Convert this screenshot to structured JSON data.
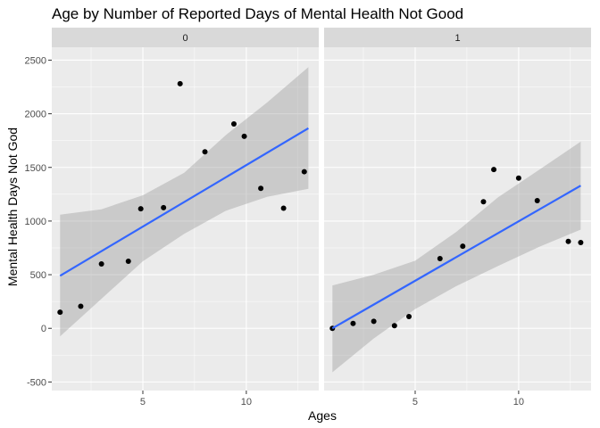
{
  "chart_data": {
    "type": "scatter",
    "title": "Age by Number of Reported Days of Mental Health Not Good",
    "xlabel": "Ages",
    "ylabel": "Mental Health Days Not God",
    "xlim": [
      0.6,
      13.5
    ],
    "ylim": [
      -580,
      2620
    ],
    "x_ticks": [
      5,
      10
    ],
    "y_ticks": [
      -500,
      0,
      500,
      1000,
      1500,
      2000,
      2500
    ],
    "grid": true,
    "legend": "none",
    "colors": {
      "panel_bg": "#ebebeb",
      "grid": "#ffffff",
      "strip_bg": "#d9d9d9",
      "point": "#000000",
      "fit_line": "#3366ff",
      "ribbon": "#999999"
    },
    "facets": [
      {
        "label": "0",
        "points": [
          {
            "x": 1,
            "y": 150
          },
          {
            "x": 2,
            "y": 205
          },
          {
            "x": 3,
            "y": 600
          },
          {
            "x": 4.3,
            "y": 625
          },
          {
            "x": 4.9,
            "y": 1115
          },
          {
            "x": 6,
            "y": 1125
          },
          {
            "x": 6.8,
            "y": 2280
          },
          {
            "x": 8,
            "y": 1645
          },
          {
            "x": 9.4,
            "y": 1905
          },
          {
            "x": 9.9,
            "y": 1790
          },
          {
            "x": 10.7,
            "y": 1305
          },
          {
            "x": 11.8,
            "y": 1120
          },
          {
            "x": 12.8,
            "y": 1460
          }
        ],
        "fit": {
          "x": [
            1,
            13
          ],
          "y": [
            490,
            1865
          ]
        },
        "band": {
          "x": [
            1,
            3,
            5,
            7,
            9,
            11,
            13
          ],
          "lower": [
            -75,
            275,
            625,
            880,
            1095,
            1225,
            1300
          ],
          "upper": [
            1060,
            1110,
            1240,
            1450,
            1800,
            2105,
            2435
          ]
        }
      },
      {
        "label": "1",
        "points": [
          {
            "x": 1,
            "y": 0
          },
          {
            "x": 2,
            "y": 45
          },
          {
            "x": 3,
            "y": 65
          },
          {
            "x": 4,
            "y": 25
          },
          {
            "x": 4.7,
            "y": 110
          },
          {
            "x": 6.2,
            "y": 650
          },
          {
            "x": 7.3,
            "y": 765
          },
          {
            "x": 8.3,
            "y": 1180
          },
          {
            "x": 8.8,
            "y": 1480
          },
          {
            "x": 10,
            "y": 1400
          },
          {
            "x": 10.9,
            "y": 1190
          },
          {
            "x": 12.4,
            "y": 810
          },
          {
            "x": 13,
            "y": 800
          }
        ],
        "fit": {
          "x": [
            1,
            13
          ],
          "y": [
            0,
            1330
          ]
        },
        "band": {
          "x": [
            1,
            3,
            5,
            7,
            9,
            11,
            13
          ],
          "lower": [
            -410,
            -95,
            180,
            395,
            580,
            760,
            920
          ],
          "upper": [
            400,
            500,
            630,
            900,
            1220,
            1480,
            1740
          ]
        }
      }
    ]
  }
}
